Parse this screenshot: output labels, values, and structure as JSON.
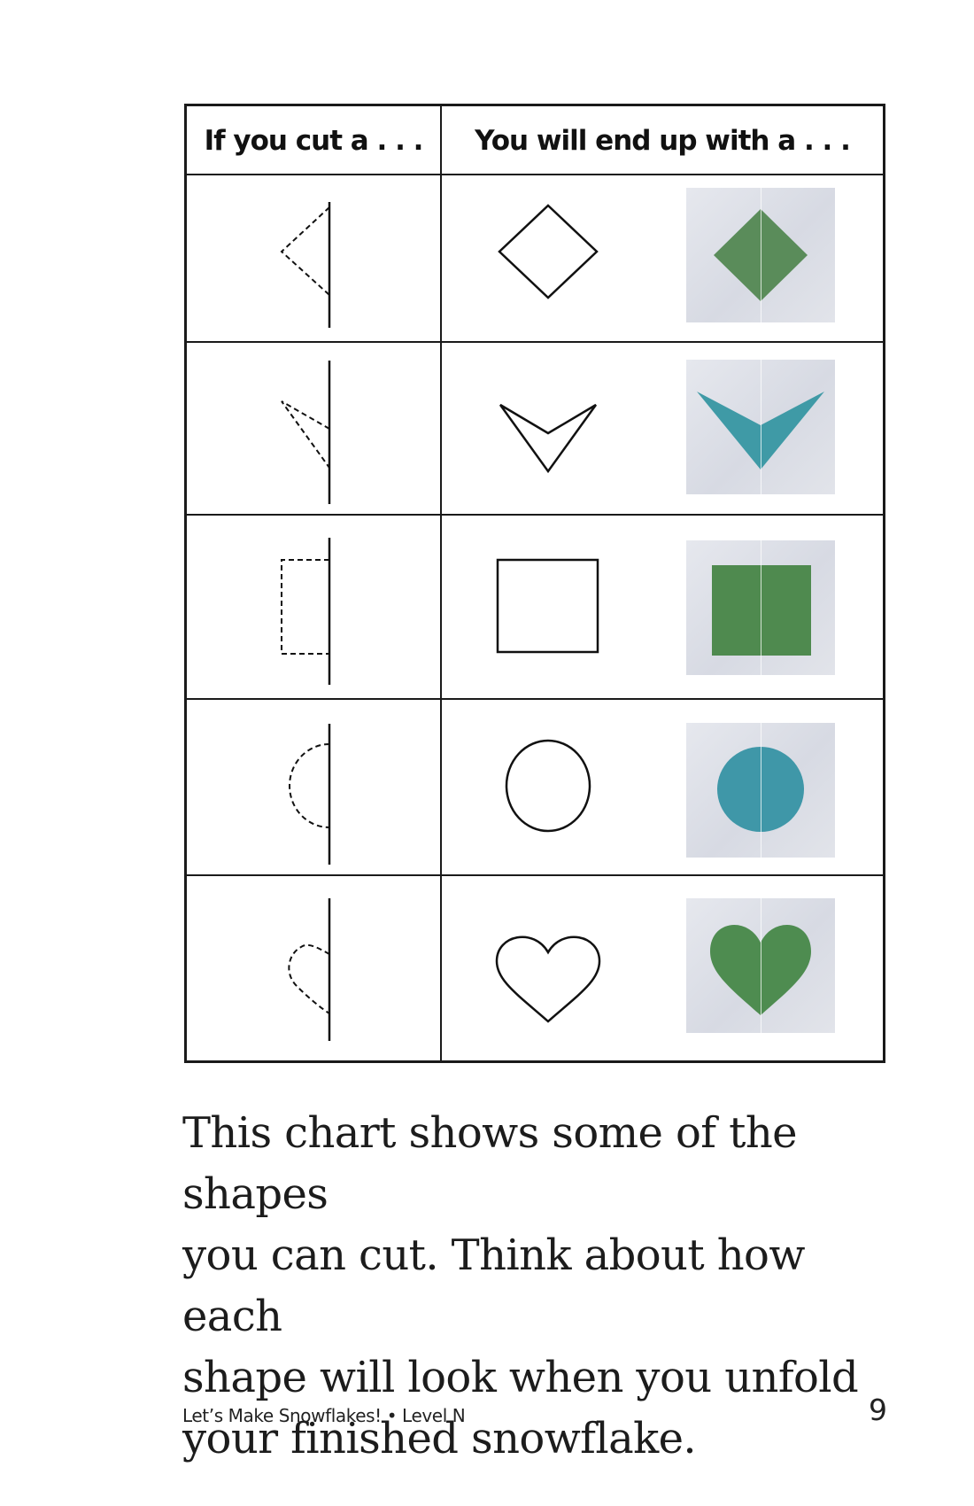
{
  "table": {
    "header_left": "If you cut a . . .",
    "header_right": "You will end up with a . . .",
    "rows": [
      {
        "shape": "diamond-icon",
        "photo_color": "#5a8c5a"
      },
      {
        "shape": "chevron-icon",
        "photo_color": "#3f9aa6"
      },
      {
        "shape": "square-icon",
        "photo_color": "#4f8a4f"
      },
      {
        "shape": "circle-icon",
        "photo_color": "#3f97a8"
      },
      {
        "shape": "heart-icon",
        "photo_color": "#4e8c50"
      }
    ]
  },
  "body": {
    "line1": "This chart shows some of the shapes",
    "line2": "you can cut. Think about how each",
    "line3": "shape will look when you unfold",
    "line4": "your finished snowflake."
  },
  "footer": {
    "title": "Let’s Make Snowflakes! • Level N",
    "page_number": "9"
  }
}
